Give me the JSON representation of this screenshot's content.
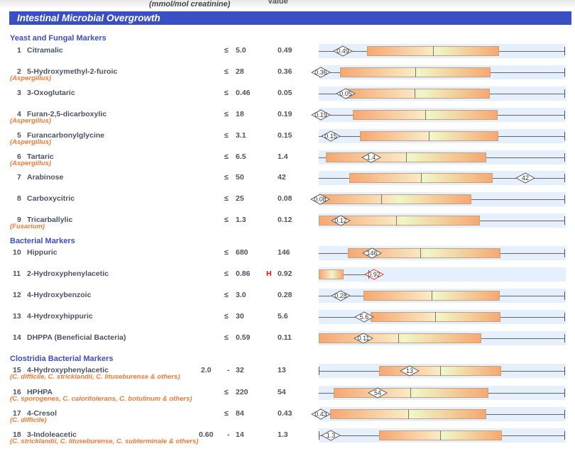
{
  "header": {
    "units_label": "(mmol/mol creatinine)",
    "value_label": "Value"
  },
  "banner": {
    "title": "Intestinal Microbial Overgrowth"
  },
  "sections": [
    {
      "title": "Yeast and Fungal Markers"
    },
    {
      "title": "Bacterial Markers"
    },
    {
      "title": "Clostridia Bacterial Markers"
    }
  ],
  "colors": {
    "banner": "#3a4fc4",
    "organism": "#f27a38",
    "high_flag": "#e01010",
    "band": "#e6effc"
  },
  "rows": [
    {
      "num": "1",
      "name": "Citramalic",
      "org": "",
      "low": "",
      "sym": "≤",
      "high": "5.0",
      "flag": "",
      "value": "0.49"
    },
    {
      "num": "2",
      "name": "5-Hydroxymethyl-2-furoic",
      "org": "(Aspergillus)",
      "low": "",
      "sym": "≤",
      "high": "28",
      "flag": "",
      "value": "0.36"
    },
    {
      "num": "3",
      "name": "3-Oxoglutaric",
      "org": "",
      "low": "",
      "sym": "≤",
      "high": "0.46",
      "flag": "",
      "value": "0.05"
    },
    {
      "num": "4",
      "name": "Furan-2,5-dicarboxylic",
      "org": "(Aspergillus)",
      "low": "",
      "sym": "≤",
      "high": "18",
      "flag": "",
      "value": "0.19"
    },
    {
      "num": "5",
      "name": "Furancarbonylglycine",
      "org": "(Aspergillus)",
      "low": "",
      "sym": "≤",
      "high": "3.1",
      "flag": "",
      "value": "0.15"
    },
    {
      "num": "6",
      "name": "Tartaric",
      "org": "(Aspergillus)",
      "low": "",
      "sym": "≤",
      "high": "6.5",
      "flag": "",
      "value": "1.4"
    },
    {
      "num": "7",
      "name": "Arabinose",
      "org": "",
      "low": "",
      "sym": "≤",
      "high": "50",
      "flag": "",
      "value": "42"
    },
    {
      "num": "8",
      "name": "Carboxycitric",
      "org": "",
      "low": "",
      "sym": "≤",
      "high": "25",
      "flag": "",
      "value": "0.08"
    },
    {
      "num": "9",
      "name": "Tricarballylic",
      "org": "(Fusarium)",
      "low": "",
      "sym": "≤",
      "high": "1.3",
      "flag": "",
      "value": "0.12"
    },
    {
      "num": "10",
      "name": "Hippuric",
      "org": "",
      "low": "",
      "sym": "≤",
      "high": "680",
      "flag": "",
      "value": "146"
    },
    {
      "num": "11",
      "name": "2-Hydroxyphenylacetic",
      "org": "",
      "low": "",
      "sym": "≤",
      "high": "0.86",
      "flag": "H",
      "value": "0.92"
    },
    {
      "num": "12",
      "name": "4-Hydroxybenzoic",
      "org": "",
      "low": "",
      "sym": "≤",
      "high": "3.0",
      "flag": "",
      "value": "0.28"
    },
    {
      "num": "13",
      "name": "4-Hydroxyhippuric",
      "org": "",
      "low": "",
      "sym": "≤",
      "high": "30",
      "flag": "",
      "value": "5.6"
    },
    {
      "num": "14",
      "name": "DHPPA (Beneficial Bacteria)",
      "org": "",
      "low": "",
      "sym": "≤",
      "high": "0.59",
      "flag": "",
      "value": "0.11"
    },
    {
      "num": "15",
      "name": "4-Hydroxyphenylacetic",
      "org": "(C. difficile, C. stricklandii, C. lituseburense & others)",
      "low": "2.0",
      "sym": "-",
      "high": "32",
      "flag": "",
      "value": "13"
    },
    {
      "num": "16",
      "name": "HPHPA",
      "org": "(C. sporogenes, C. caloritolerans, C. botulinum & others)",
      "low": "",
      "sym": "≤",
      "high": "220",
      "flag": "",
      "value": "54"
    },
    {
      "num": "17",
      "name": "4-Cresol",
      "org": "(C. difficile)",
      "low": "",
      "sym": "≤",
      "high": "84",
      "flag": "",
      "value": "0.43"
    },
    {
      "num": "18",
      "name": "3-Indoleacetic",
      "org": "(C. stricklandii, C. lituseburense, C. subterminale & others)",
      "low": "0.60",
      "sym": "-",
      "high": "14",
      "flag": "",
      "value": "1.3"
    }
  ]
}
